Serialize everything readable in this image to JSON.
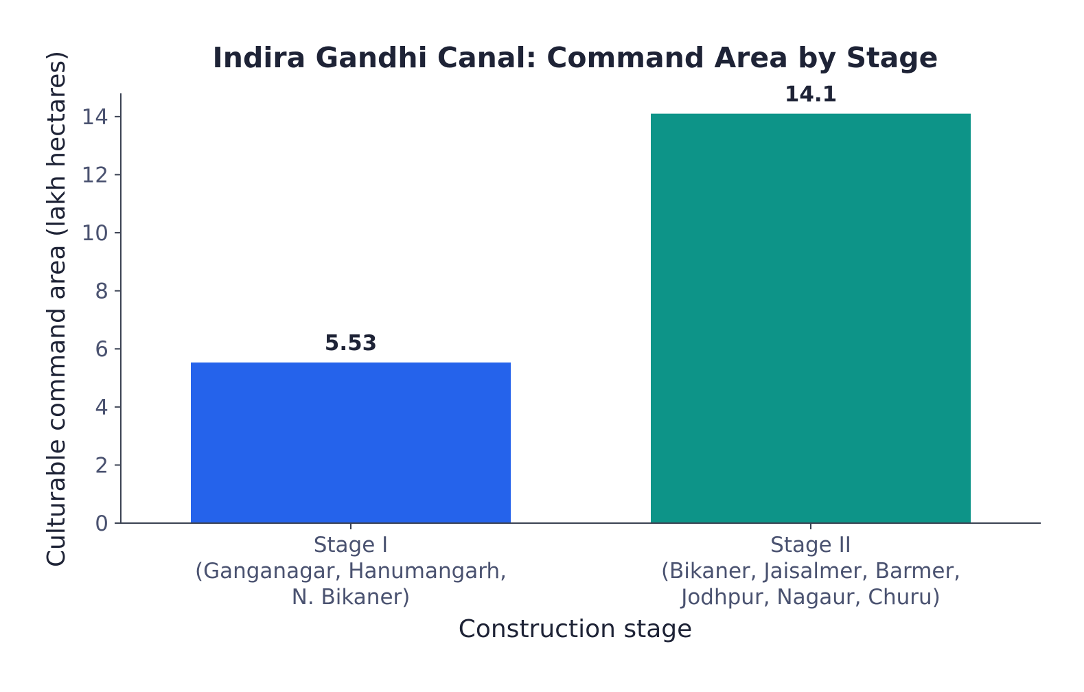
{
  "chart_data": {
    "type": "bar",
    "title": "Indira Gandhi Canal: Command Area by Stage",
    "xlabel": "Construction stage",
    "ylabel": "Culturable command area (lakh hectares)",
    "categories": [
      [
        "Stage I",
        "(Ganganagar, Hanumangarh,",
        "N. Bikaner)"
      ],
      [
        "Stage II",
        "(Bikaner, Jaisalmer, Barmer,",
        "Jodhpur, Nagaur, Churu)"
      ]
    ],
    "values": [
      5.53,
      14.1
    ],
    "value_labels": [
      "5.53",
      "14.1"
    ],
    "colors": [
      "#2563eb",
      "#0d9488"
    ],
    "ylim": [
      0,
      14.8
    ],
    "yticks": [
      0,
      2,
      4,
      6,
      8,
      10,
      12,
      14
    ],
    "grid": false,
    "legend": "none"
  }
}
